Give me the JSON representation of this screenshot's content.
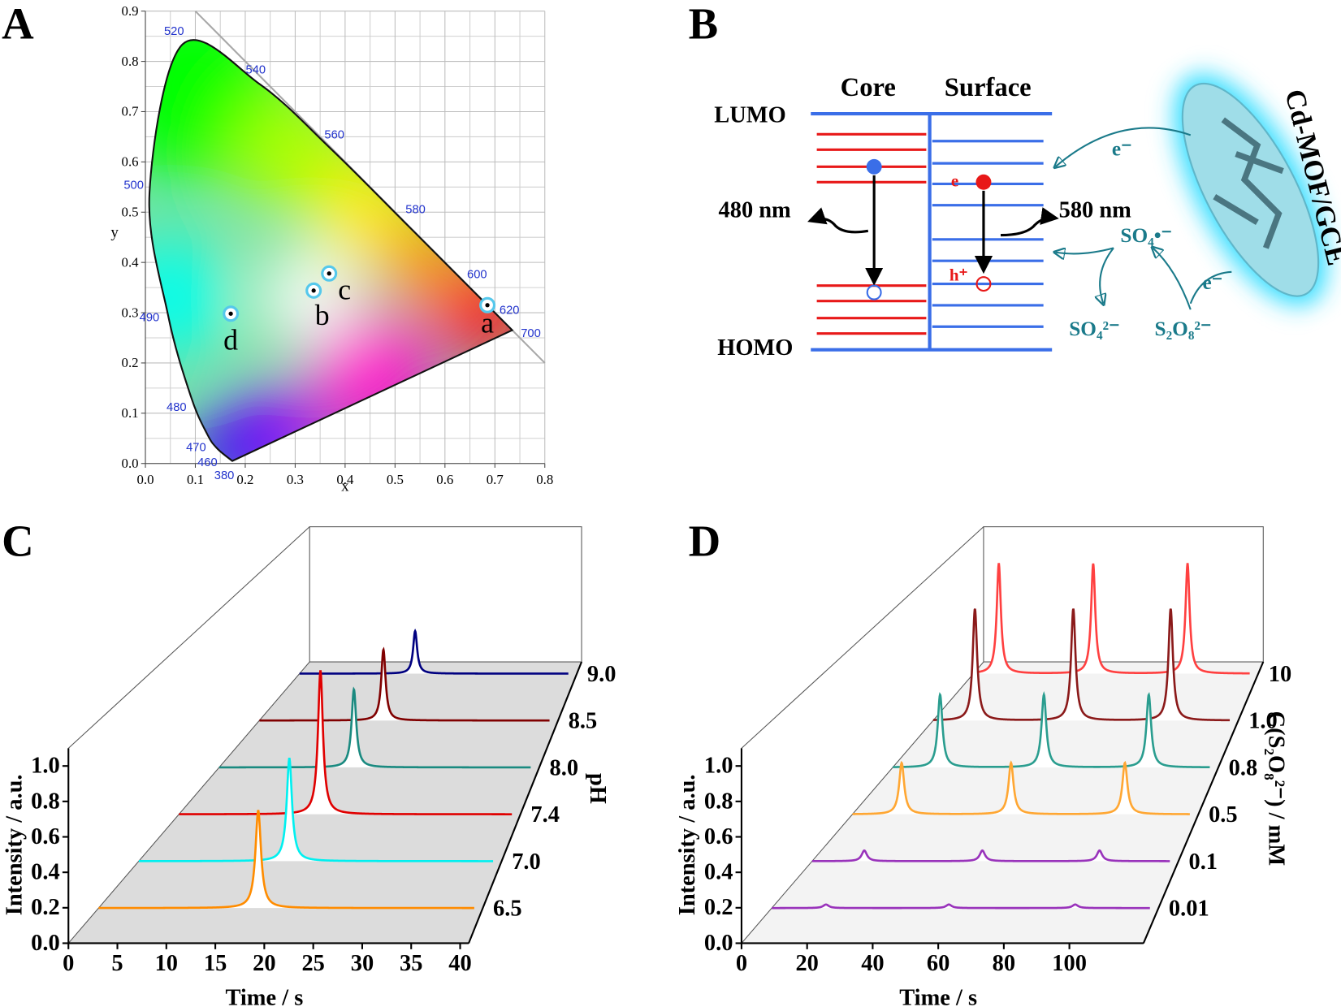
{
  "panel_labels": [
    "A",
    "B",
    "C",
    "D"
  ],
  "chart_data": [
    {
      "type": "chromaticity",
      "xlabel": "x",
      "ylabel": "y",
      "xlim": [
        0,
        0.8
      ],
      "ylim": [
        0,
        0.9
      ],
      "xticks": [
        {
          "value": 0,
          "label": "0.0"
        },
        0.1,
        0.2,
        0.3,
        0.4,
        0.5,
        0.6,
        0.7,
        0.8
      ],
      "yticks": [
        {
          "value": 0,
          "label": "0.0"
        },
        0.1,
        0.2,
        0.3,
        0.4,
        0.5,
        0.6,
        0.7,
        0.8,
        0.9
      ],
      "grid": true,
      "spectral_locus": {
        "wavelengths": [
          380,
          460,
          470,
          480,
          490,
          500,
          520,
          540,
          560,
          580,
          600,
          620,
          700
        ],
        "x": [
          0.1741,
          0.144,
          0.1241,
          0.0913,
          0.0454,
          0.0082,
          0.0743,
          0.2296,
          0.3731,
          0.5125,
          0.627,
          0.6915,
          0.7347
        ],
        "y": [
          0.005,
          0.0297,
          0.0578,
          0.1327,
          0.295,
          0.5384,
          0.8338,
          0.7543,
          0.6245,
          0.4866,
          0.3725,
          0.3083,
          0.2653
        ]
      },
      "points": {
        "labels": [
          "a",
          "b",
          "c",
          "d"
        ],
        "x": [
          0.685,
          0.337,
          0.368,
          0.171
        ],
        "y": [
          0.315,
          0.344,
          0.378,
          0.298
        ]
      }
    },
    {
      "type": "waterfall",
      "xlabel": "Time / s",
      "ylabel": "Intensity / a.u.",
      "zlabel": "pH",
      "xlim": [
        0,
        40
      ],
      "xticks": [
        0,
        5,
        10,
        15,
        20,
        25,
        30,
        35,
        40
      ],
      "ylim": [
        0,
        1.1
      ],
      "yticks": [
        {
          "value": 0,
          "label": "0.0"
        },
        0.2,
        0.4,
        0.6,
        0.8,
        {
          "value": 1,
          "label": "1.0"
        }
      ],
      "floor_color": "#dcdcdc",
      "series": [
        {
          "name": "6.5",
          "color": "#ff8c00",
          "peak_times": [
            17.0
          ],
          "peak_heights": [
            0.55
          ]
        },
        {
          "name": "7.0",
          "color": "#00f0f0",
          "peak_times": [
            17.0
          ],
          "peak_heights": [
            0.58
          ]
        },
        {
          "name": "7.4",
          "color": "#e00000",
          "peak_times": [
            17.0
          ],
          "peak_heights": [
            0.81
          ]
        },
        {
          "name": "8.0",
          "color": "#1a8a80",
          "peak_times": [
            17.3
          ],
          "peak_heights": [
            0.44
          ]
        },
        {
          "name": "8.5",
          "color": "#800000",
          "peak_times": [
            17.1
          ],
          "peak_heights": [
            0.4
          ]
        },
        {
          "name": "9.0",
          "color": "#000080",
          "peak_times": [
            17.2
          ],
          "peak_heights": [
            0.24
          ]
        }
      ]
    },
    {
      "type": "waterfall",
      "xlabel": "Time / s",
      "ylabel": "Intensity / a.u.",
      "zlabel": "C(S₂O₈²⁻) / mM",
      "xlim": [
        0,
        120
      ],
      "xticks": [
        0,
        20,
        40,
        60,
        80,
        100
      ],
      "ylim": [
        0,
        1.1
      ],
      "yticks": [
        {
          "value": 0,
          "label": "0.0"
        },
        0.2,
        0.4,
        0.6,
        0.8,
        {
          "value": 1,
          "label": "1.0"
        }
      ],
      "floor_color": "#f3f3f3",
      "series": [
        {
          "name": "0.01",
          "color": "#9933bb",
          "peak_times": [
            17.2,
            56.2,
            96.3
          ],
          "peak_heights": [
            0.02,
            0.02,
            0.02
          ]
        },
        {
          "name": "0.1",
          "color": "#9933bb",
          "peak_times": [
            17.5,
            57.1,
            96.4
          ],
          "peak_heights": [
            0.06,
            0.06,
            0.06
          ]
        },
        {
          "name": "0.5",
          "color": "#ffa733",
          "peak_times": [
            17.5,
            56.4,
            96.9
          ],
          "peak_heights": [
            0.29,
            0.29,
            0.29
          ]
        },
        {
          "name": "0.8",
          "color": "#2a9d8f",
          "peak_times": [
            17.9,
            57.2,
            96.9
          ],
          "peak_heights": [
            0.41,
            0.41,
            0.41
          ]
        },
        {
          "name": "1.0",
          "color": "#8b1a1a",
          "peak_times": [
            16.9,
            56.7,
            96.1
          ],
          "peak_heights": [
            0.63,
            0.63,
            0.63
          ]
        },
        {
          "name": "10",
          "color": "#ff4040",
          "peak_times": [
            11,
            52,
            93
          ],
          "peak_heights": [
            0.62,
            0.62,
            0.62
          ]
        }
      ]
    }
  ],
  "diagram": {
    "levels": [
      "LUMO",
      "HOMO"
    ],
    "columns": [
      "Core",
      "Surface"
    ],
    "emissions": [
      "480 nm",
      "580 nm"
    ],
    "electrode": "Cd-MOF/GCE",
    "species": [
      "SO₄•⁻",
      "SO₄²⁻",
      "S₂O₈²⁻"
    ],
    "charges": [
      "e",
      "h⁺",
      "e⁻",
      "e⁻"
    ]
  }
}
